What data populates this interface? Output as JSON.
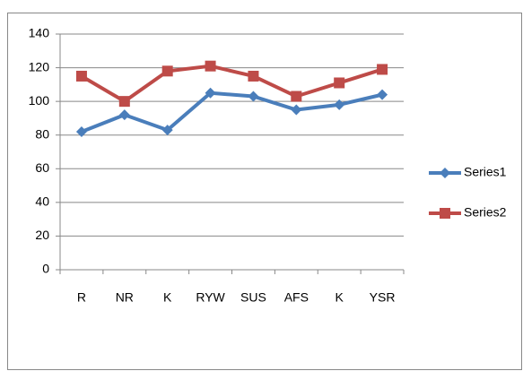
{
  "chart_data": {
    "type": "line",
    "categories": [
      "R",
      "NR",
      "K",
      "RYW",
      "SUS",
      "AFS",
      "K",
      "YSR"
    ],
    "series": [
      {
        "name": "Series1",
        "color": "#4a7ebb",
        "values": [
          82,
          92,
          83,
          105,
          103,
          95,
          98,
          104
        ]
      },
      {
        "name": "Series2",
        "color": "#be4b48",
        "values": [
          115,
          100,
          118,
          121,
          115,
          103,
          111,
          119
        ]
      }
    ],
    "ylim": [
      0,
      140
    ],
    "yticks": [
      0,
      20,
      40,
      60,
      80,
      100,
      120,
      140
    ],
    "grid": true,
    "legend": "right"
  }
}
